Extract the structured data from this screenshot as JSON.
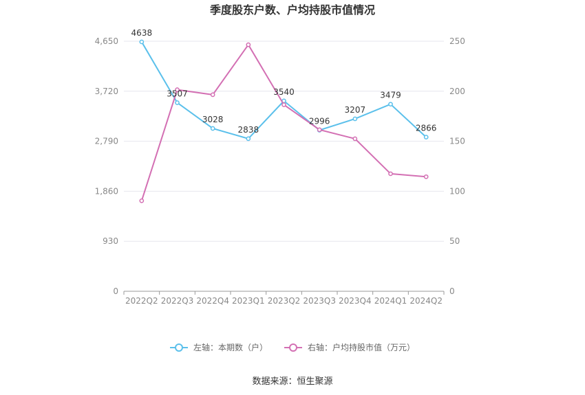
{
  "chart_data": {
    "type": "line",
    "title": "季度股东户数、户均持股市值情况",
    "categories": [
      "2022Q2",
      "2022Q3",
      "2022Q4",
      "2023Q1",
      "2023Q2",
      "2023Q3",
      "2023Q4",
      "2024Q1",
      "2024Q2"
    ],
    "left_axis": {
      "ylim": [
        0,
        4650
      ],
      "ticks": [
        "0",
        "930",
        "1,860",
        "2,790",
        "3,720",
        "4,650"
      ]
    },
    "right_axis": {
      "ylim": [
        0,
        250
      ],
      "ticks": [
        "0",
        "50",
        "100",
        "150",
        "200",
        "250"
      ]
    },
    "series": [
      {
        "name": "左轴：本期数（户）",
        "axis": "left",
        "color": "#5bc0eb",
        "values": [
          4638,
          3507,
          3028,
          2838,
          3540,
          2996,
          3207,
          3479,
          2866
        ],
        "labels": [
          "4638",
          "3507",
          "3028",
          "2838",
          "3540",
          "2996",
          "3207",
          "3479",
          "2866"
        ]
      },
      {
        "name": "右轴：户均持股市值（万元）",
        "axis": "right",
        "color": "#d36fb3",
        "values": [
          90.5,
          201.5,
          196.5,
          246.5,
          186.5,
          161.5,
          152.5,
          117.5,
          114.5
        ]
      }
    ],
    "grid": true,
    "legend": "bottom-center"
  },
  "source": "数据来源：恒生聚源"
}
